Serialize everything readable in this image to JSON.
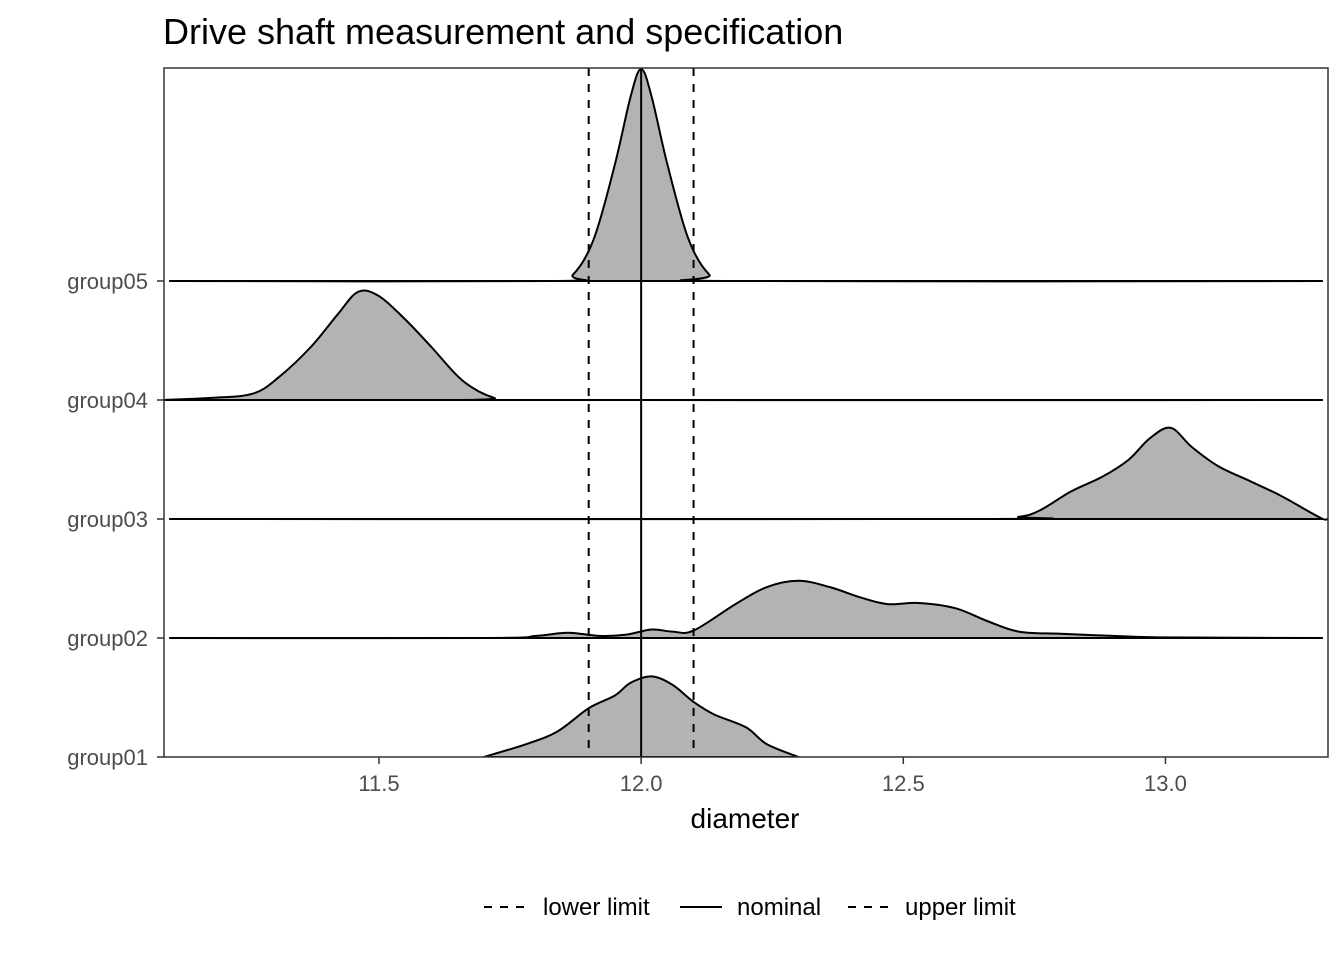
{
  "chart_data": {
    "type": "ridgeline",
    "title": "Drive shaft measurement and specification",
    "xlabel": "diameter",
    "ylabel": "",
    "xlim": [
      11.09,
      13.31
    ],
    "x_ticks": [
      11.5,
      12.0,
      12.5,
      13.0
    ],
    "x_tick_labels": [
      "11.5",
      "12.0",
      "12.5",
      "13.0"
    ],
    "fill_color": "#b3b3b3",
    "line_color": "#000000",
    "grid": false,
    "legend_position": "bottom",
    "reference_lines": [
      {
        "name": "lower limit",
        "x": 11.9,
        "style": "dashed"
      },
      {
        "name": "nominal",
        "x": 12.0,
        "style": "solid"
      },
      {
        "name": "upper limit",
        "x": 12.1,
        "style": "dashed"
      }
    ],
    "series": [
      {
        "name": "group01",
        "x_range": [
          11.7,
          12.3
        ],
        "points": [
          [
            11.7,
            0.0
          ],
          [
            11.78,
            0.06
          ],
          [
            11.84,
            0.12
          ],
          [
            11.9,
            0.23
          ],
          [
            11.95,
            0.29
          ],
          [
            11.98,
            0.35
          ],
          [
            12.02,
            0.38
          ],
          [
            12.06,
            0.34
          ],
          [
            12.1,
            0.26
          ],
          [
            12.14,
            0.2
          ],
          [
            12.2,
            0.14
          ],
          [
            12.24,
            0.06
          ],
          [
            12.3,
            0.0
          ]
        ]
      },
      {
        "name": "group02",
        "x_range": [
          11.1,
          13.3
        ],
        "points": [
          [
            11.1,
            0.0
          ],
          [
            11.7,
            0.0
          ],
          [
            11.8,
            0.01
          ],
          [
            11.86,
            0.025
          ],
          [
            11.92,
            0.01
          ],
          [
            11.97,
            0.015
          ],
          [
            12.02,
            0.04
          ],
          [
            12.06,
            0.03
          ],
          [
            12.1,
            0.035
          ],
          [
            12.18,
            0.16
          ],
          [
            12.24,
            0.24
          ],
          [
            12.3,
            0.27
          ],
          [
            12.36,
            0.24
          ],
          [
            12.42,
            0.19
          ],
          [
            12.47,
            0.16
          ],
          [
            12.53,
            0.165
          ],
          [
            12.6,
            0.14
          ],
          [
            12.66,
            0.08
          ],
          [
            12.72,
            0.03
          ],
          [
            12.8,
            0.02
          ],
          [
            12.9,
            0.01
          ],
          [
            13.0,
            0.003
          ],
          [
            13.3,
            0.0
          ]
        ]
      },
      {
        "name": "group03",
        "x_range": [
          11.1,
          13.3
        ],
        "points": [
          [
            11.1,
            0.0
          ],
          [
            12.65,
            0.0
          ],
          [
            12.72,
            0.01
          ],
          [
            12.76,
            0.04
          ],
          [
            12.82,
            0.13
          ],
          [
            12.88,
            0.2
          ],
          [
            12.93,
            0.28
          ],
          [
            12.97,
            0.38
          ],
          [
            13.01,
            0.43
          ],
          [
            13.05,
            0.34
          ],
          [
            13.1,
            0.25
          ],
          [
            13.16,
            0.18
          ],
          [
            13.22,
            0.11
          ],
          [
            13.27,
            0.04
          ],
          [
            13.3,
            0.0
          ],
          [
            13.31,
            0.0
          ]
        ]
      },
      {
        "name": "group04",
        "x_range": [
          11.09,
          13.3
        ],
        "points": [
          [
            11.09,
            0.0
          ],
          [
            11.18,
            0.01
          ],
          [
            11.26,
            0.03
          ],
          [
            11.31,
            0.11
          ],
          [
            11.37,
            0.25
          ],
          [
            11.42,
            0.4
          ],
          [
            11.46,
            0.51
          ],
          [
            11.5,
            0.49
          ],
          [
            11.55,
            0.38
          ],
          [
            11.6,
            0.25
          ],
          [
            11.66,
            0.09
          ],
          [
            11.72,
            0.01
          ],
          [
            11.78,
            0.0
          ],
          [
            13.3,
            0.0
          ]
        ]
      },
      {
        "name": "group05",
        "x_range": [
          11.1,
          13.3
        ],
        "points": [
          [
            11.1,
            0.0
          ],
          [
            11.83,
            0.0
          ],
          [
            11.87,
            0.03
          ],
          [
            11.91,
            0.2
          ],
          [
            11.95,
            0.55
          ],
          [
            11.98,
            0.87
          ],
          [
            12.0,
            1.0
          ],
          [
            12.02,
            0.87
          ],
          [
            12.05,
            0.55
          ],
          [
            12.09,
            0.2
          ],
          [
            12.13,
            0.03
          ],
          [
            12.17,
            0.0
          ],
          [
            13.3,
            0.0
          ]
        ]
      }
    ],
    "series_labels": [
      "group01",
      "group02",
      "group03",
      "group04",
      "group05"
    ]
  }
}
